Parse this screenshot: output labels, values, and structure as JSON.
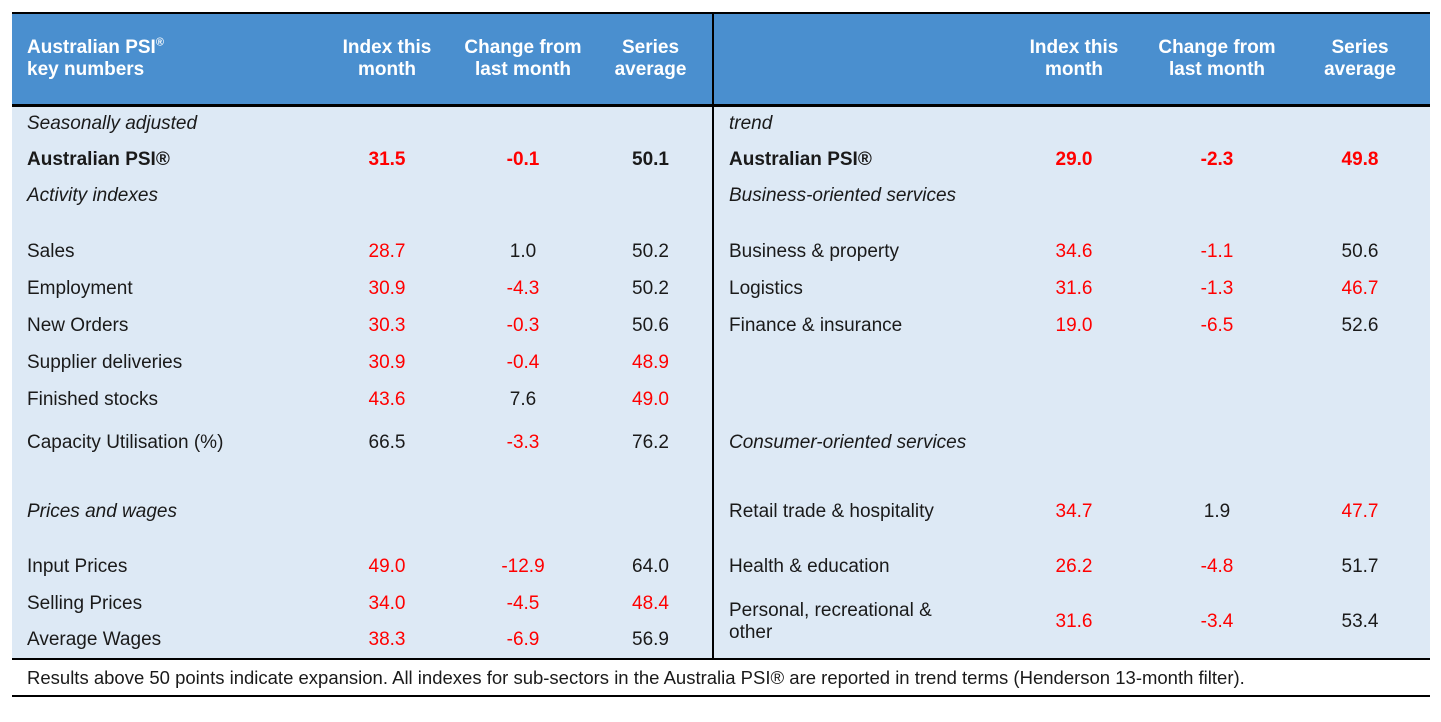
{
  "header": {
    "title": "Australian PSI",
    "title_sup": "®",
    "title_line2": "key numbers",
    "left_cols": [
      "Index this month",
      "Change from last month",
      "Series average"
    ],
    "right_cols": [
      "Index this month",
      "Change from last month",
      "Series average"
    ],
    "bg_color": "#4a8fcf"
  },
  "left": {
    "section1": "Seasonally adjusted",
    "psi_label": "Australian PSI®",
    "psi": [
      "31.5",
      "-0.1",
      "50.1"
    ],
    "section2": "Activity indexes",
    "activity": [
      {
        "label": "Sales",
        "v": [
          "28.7",
          "1.0",
          "50.2"
        ]
      },
      {
        "label": "Employment",
        "v": [
          "30.9",
          "-4.3",
          "50.2"
        ]
      },
      {
        "label": "New Orders",
        "v": [
          "30.3",
          "-0.3",
          "50.6"
        ]
      },
      {
        "label": "Supplier deliveries",
        "v": [
          "30.9",
          "-0.4",
          "48.9"
        ]
      },
      {
        "label": "Finished stocks",
        "v": [
          "43.6",
          "7.6",
          "49.0"
        ]
      }
    ],
    "capacity": {
      "label": "Capacity Utilisation (%)",
      "v": [
        "66.5",
        "-3.3",
        "76.2"
      ]
    },
    "section3": "Prices and wages",
    "prices": [
      {
        "label": "Input Prices",
        "v": [
          "49.0",
          "-12.9",
          "64.0"
        ]
      },
      {
        "label": "Selling Prices",
        "v": [
          "34.0",
          "-4.5",
          "48.4"
        ]
      },
      {
        "label": "Average Wages",
        "v": [
          "38.3",
          "-6.9",
          "56.9"
        ]
      }
    ]
  },
  "right": {
    "section1": "trend",
    "psi_label": "Australian PSI®",
    "psi": [
      "29.0",
      "-2.3",
      "49.8"
    ],
    "section2": "Business-oriented services",
    "business": [
      {
        "label": "Business & property",
        "v": [
          "34.6",
          "-1.1",
          "50.6"
        ]
      },
      {
        "label": "Logistics",
        "v": [
          "31.6",
          "-1.3",
          "46.7"
        ]
      },
      {
        "label": "Finance & insurance",
        "v": [
          "19.0",
          "-6.5",
          "52.6"
        ]
      }
    ],
    "section3": "Consumer-oriented services",
    "consumer": [
      {
        "label": "Retail trade & hospitality",
        "v": [
          "34.7",
          "1.9",
          "47.7"
        ]
      },
      {
        "label": "Health & education",
        "v": [
          "26.2",
          "-4.8",
          "51.7"
        ]
      },
      {
        "label": "Personal, recreational & other",
        "v": [
          "31.6",
          "-3.4",
          "53.4"
        ]
      }
    ]
  },
  "footer": "Results above 50 points indicate expansion. All indexes for sub-sectors in the Australia PSI® are reported in trend terms (Henderson 13-month filter).",
  "colors": {
    "highlight": "#ff0000",
    "body_bg": "#dde9f5"
  }
}
